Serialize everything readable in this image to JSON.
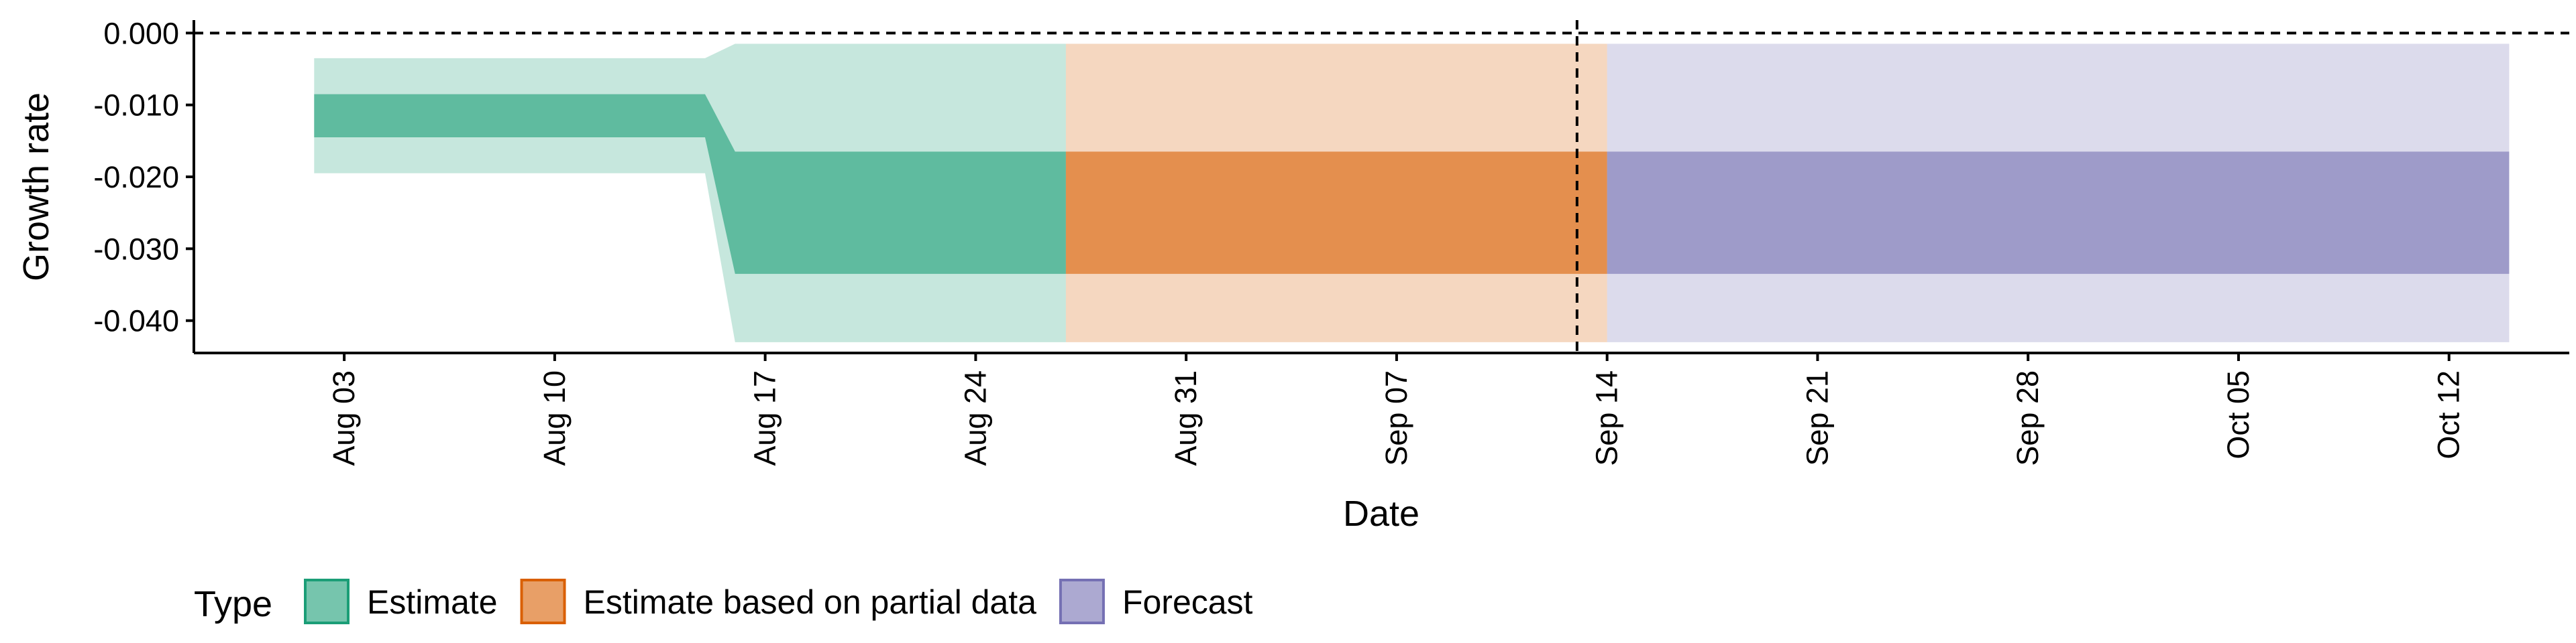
{
  "chart_data": {
    "type": "area",
    "xlabel": "Date",
    "ylabel": "Growth rate",
    "x_tick_labels": [
      "Aug 03",
      "Aug 10",
      "Aug 17",
      "Aug 24",
      "Aug 31",
      "Sep 07",
      "Sep 14",
      "Sep 21",
      "Sep 28",
      "Oct 05",
      "Oct 12"
    ],
    "x_tick_dates": [
      "2020-08-03",
      "2020-08-10",
      "2020-08-17",
      "2020-08-24",
      "2020-08-31",
      "2020-09-07",
      "2020-09-14",
      "2020-09-21",
      "2020-09-28",
      "2020-10-05",
      "2020-10-12"
    ],
    "y_ticks": [
      "0.000",
      "-0.010",
      "-0.020",
      "-0.030",
      "-0.040"
    ],
    "xlim": [
      "2020-07-29",
      "2020-10-16"
    ],
    "ylim": [
      -0.0445,
      0.0018
    ],
    "reference_lines": {
      "horizontal_dashed_y": 0.0,
      "vertical_dashed_date": "2020-09-13"
    },
    "legend": {
      "title": "Type",
      "position": "bottom",
      "entries": [
        {
          "label": "Estimate",
          "color": "#1B9E77"
        },
        {
          "label": "Estimate based on partial data",
          "color": "#D95F02"
        },
        {
          "label": "Forecast",
          "color": "#7570B3"
        }
      ]
    },
    "series": [
      {
        "name": "Estimate",
        "color": "#1B9E77",
        "points": [
          {
            "x": "2020-08-02",
            "outer": [
              -0.0195,
              -0.0035
            ],
            "inner": [
              -0.0145,
              -0.0085
            ]
          },
          {
            "x": "2020-08-15",
            "outer": [
              -0.0195,
              -0.0035
            ],
            "inner": [
              -0.0145,
              -0.0085
            ]
          },
          {
            "x": "2020-08-16",
            "outer": [
              -0.043,
              -0.0015
            ],
            "inner": [
              -0.0335,
              -0.0165
            ]
          },
          {
            "x": "2020-08-26",
            "outer": [
              -0.043,
              -0.0015
            ],
            "inner": [
              -0.0335,
              -0.0165
            ]
          }
        ]
      },
      {
        "name": "Estimate based on partial data",
        "color": "#D95F02",
        "points": [
          {
            "x": "2020-08-27",
            "outer": [
              -0.043,
              -0.0015
            ],
            "inner": [
              -0.0335,
              -0.0165
            ]
          },
          {
            "x": "2020-09-13",
            "outer": [
              -0.043,
              -0.0015
            ],
            "inner": [
              -0.0335,
              -0.0165
            ]
          }
        ]
      },
      {
        "name": "Forecast",
        "color": "#7570B3",
        "points": [
          {
            "x": "2020-09-14",
            "outer": [
              -0.043,
              -0.0015
            ],
            "inner": [
              -0.0335,
              -0.0165
            ]
          },
          {
            "x": "2020-10-13",
            "outer": [
              -0.043,
              -0.0015
            ],
            "inner": [
              -0.0335,
              -0.0165
            ]
          }
        ]
      }
    ]
  }
}
